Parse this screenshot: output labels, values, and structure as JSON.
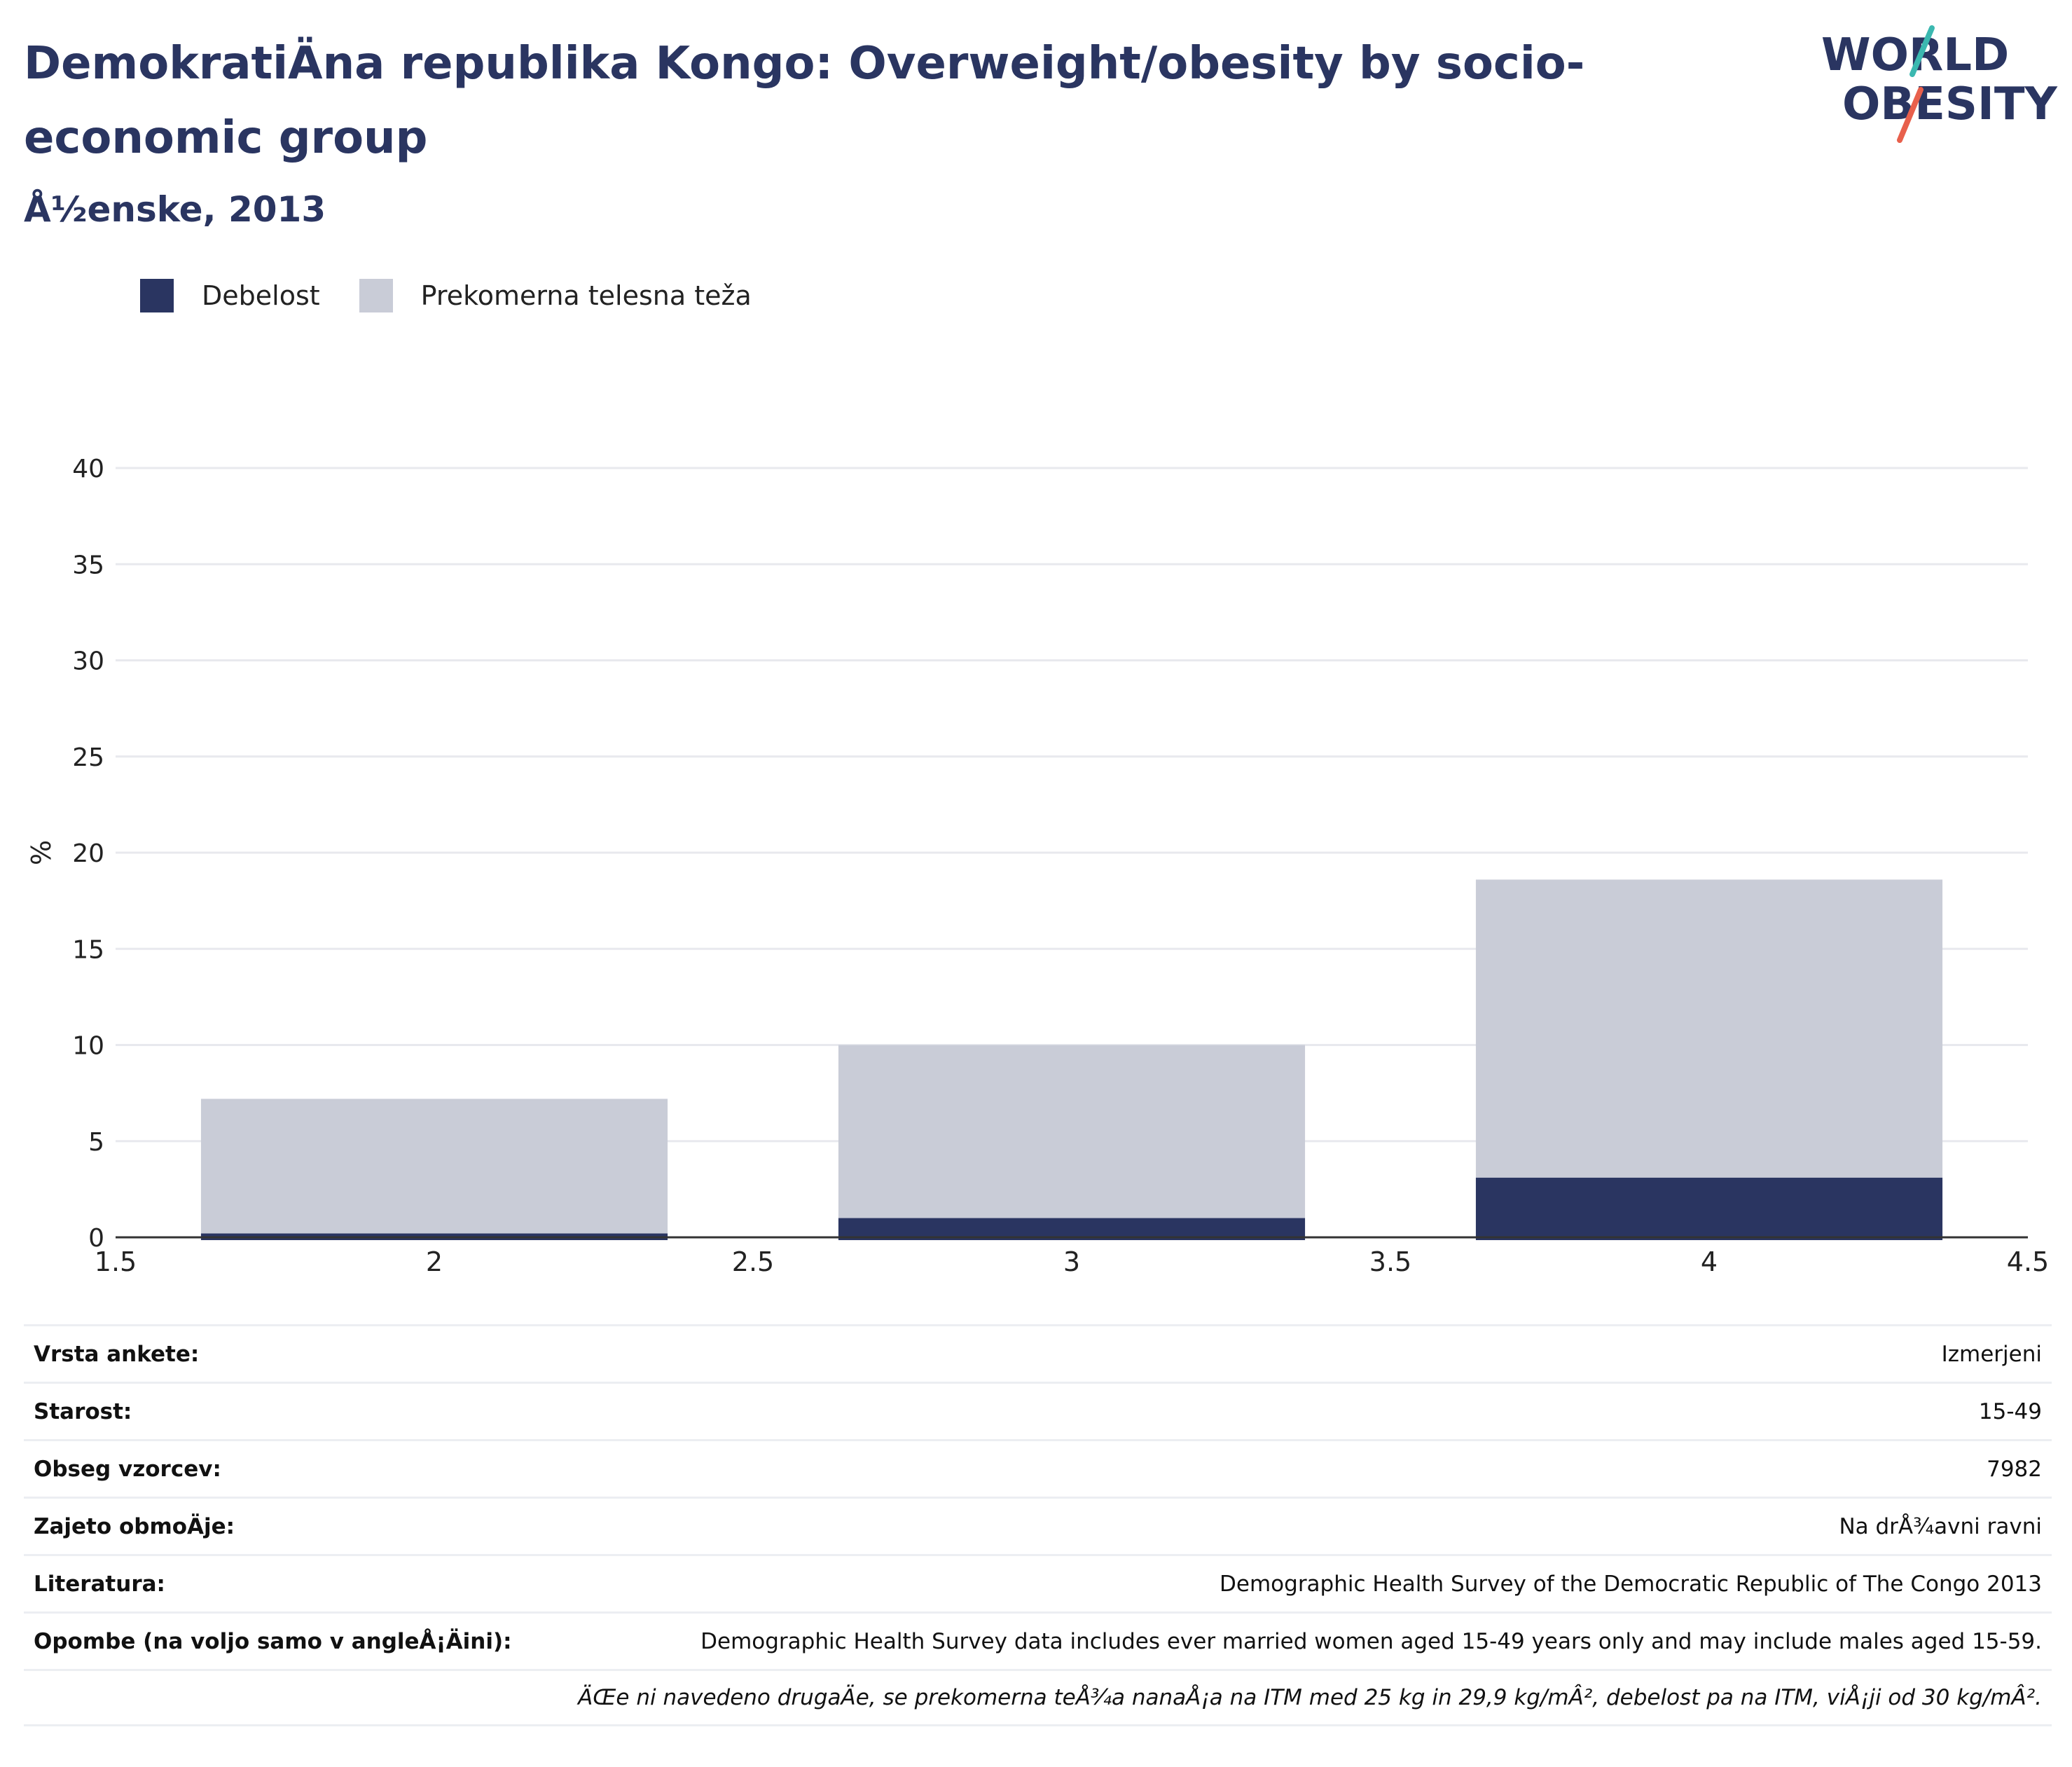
{
  "header": {
    "title": "DemokratiÄna republika Kongo: Overweight/obesity by socio-economic group",
    "subtitle": "Å½enske, 2013"
  },
  "logo": {
    "line1": "WORLD",
    "line2": "OBESITY",
    "accent_colors": [
      "#3bb8b0",
      "#e8604c"
    ]
  },
  "legend": [
    {
      "label": "Debelost",
      "color": "#2a3561"
    },
    {
      "label": "Prekomerna telesna teža",
      "color": "#c9ccd7"
    }
  ],
  "chart_data": {
    "type": "bar",
    "barmode": "overlay",
    "x": [
      2,
      3,
      4
    ],
    "series": [
      {
        "name": "Prekomerna telesna teža",
        "values": [
          7.2,
          10.0,
          18.6
        ],
        "color": "#c9ccd7"
      },
      {
        "name": "Debelost",
        "values": [
          0.2,
          1.0,
          3.1
        ],
        "color": "#2a3561"
      }
    ],
    "ylabel": "%",
    "xlim": [
      1.5,
      4.5
    ],
    "ylim": [
      0,
      40
    ],
    "xticks": [
      "1.5",
      "2",
      "2.5",
      "3",
      "3.5",
      "4",
      "4.5"
    ],
    "yticks": [
      "0",
      "5",
      "10",
      "15",
      "20",
      "25",
      "30",
      "35",
      "40"
    ],
    "grid": true,
    "legend_position": "top-left"
  },
  "info": [
    {
      "label": "Vrsta ankete:",
      "value": "Izmerjeni"
    },
    {
      "label": "Starost:",
      "value": "15-49"
    },
    {
      "label": "Obseg vzorcev:",
      "value": "7982"
    },
    {
      "label": "Zajeto obmoÄje:",
      "value": "Na drÅ¾avni ravni"
    },
    {
      "label": "Literatura:",
      "value": "Demographic Health Survey of the Democratic Republic of The Congo 2013"
    },
    {
      "label": "Opombe (na voljo samo v angleÅ¡Äini):",
      "value": "Demographic Health Survey data includes ever married women aged 15-49 years only and may include males aged 15-59."
    }
  ],
  "footnote": "ÄŒe ni navedeno drugaÄe, se prekomerna teÅ¾a nanaÅ¡a na ITM med 25 kg in 29,9 kg/mÂ², debelost pa na ITM, viÅ¡ji od 30 kg/mÂ²."
}
